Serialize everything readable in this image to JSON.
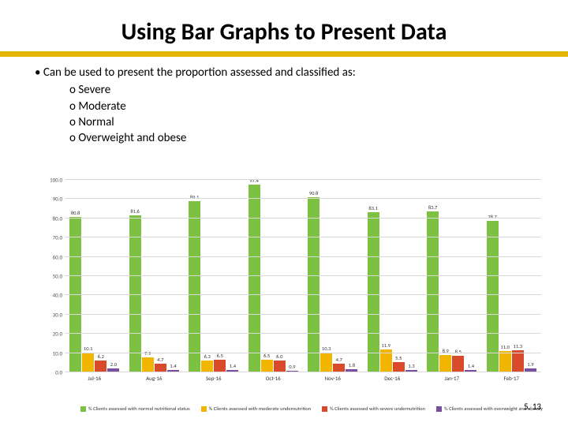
{
  "title": "Using Bar Graphs to Present Data",
  "bullet_lead": "Can be used to present the proportion assessed and classified as:",
  "bullets": [
    "Severe",
    "Moderate",
    "Normal",
    "Overweight and obese"
  ],
  "page_number": "5. 13",
  "chart": {
    "type": "bar",
    "ylim": [
      0,
      100
    ],
    "yticks": [
      0,
      10,
      20,
      30,
      40,
      50,
      60,
      70,
      80,
      90,
      100
    ],
    "ytick_labels": [
      "0.0",
      "10.0",
      "20.0",
      "30.0",
      "40.0",
      "50.0",
      "60.0",
      "70.0",
      "80.0",
      "90.0",
      "100.0"
    ],
    "grid_color": "#d9d9d9",
    "axis_font_size": 7,
    "value_font_size": 6.5,
    "legend_font_size": 6.5,
    "categories": [
      "Jul-16",
      "Aug-16",
      "Sep-16",
      "Oct-16",
      "Nov-16",
      "Dec-16",
      "Jan-17",
      "Feb-17"
    ],
    "series": [
      {
        "name": "% Clients assessed with normal nutritional status",
        "color": "#7cc142",
        "values": [
          80.8,
          81.6,
          89.1,
          97.4,
          90.8,
          83.1,
          83.7,
          78.7
        ]
      },
      {
        "name": "% Clients assessed with moderate undernutrition",
        "color": "#f2b600",
        "values": [
          10.1,
          7.9,
          6.3,
          6.5,
          10.3,
          11.9,
          8.9,
          11.0
        ]
      },
      {
        "name": "% Clients assessed with severe undernutrition",
        "color": "#d94a2b",
        "values": [
          6.2,
          4.7,
          6.5,
          6.0,
          4.7,
          5.5,
          8.5,
          11.3
        ]
      },
      {
        "name": "% Clients assessed with overweight and obesity",
        "color": "#7a4fa0",
        "values": [
          2.0,
          1.4,
          1.4,
          0.9,
          1.8,
          1.3,
          1.4,
          1.9
        ]
      }
    ]
  }
}
